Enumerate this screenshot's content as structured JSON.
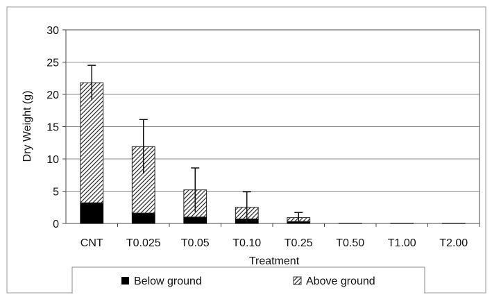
{
  "chart_data": {
    "type": "bar",
    "stacked": true,
    "xlabel": "Treatment",
    "ylabel": "Dry Weight (g)",
    "ylim": [
      0,
      30
    ],
    "yticks": [
      0,
      5,
      10,
      15,
      20,
      25,
      30
    ],
    "grid": true,
    "legend_position": "bottom",
    "categories": [
      "CNT",
      "T0.025",
      "T0.05",
      "T0.10",
      "T0.25",
      "T0.50",
      "T1.00",
      "T2.00"
    ],
    "series": [
      {
        "name": "Below ground",
        "pattern": "solid",
        "color": "#000000",
        "values": [
          3.2,
          1.6,
          1.0,
          0.7,
          0.3,
          0.0,
          0.0,
          0.0
        ]
      },
      {
        "name": "Above ground",
        "pattern": "diagonal-hatch",
        "color": "#555555",
        "values": [
          18.6,
          10.3,
          4.2,
          1.8,
          0.6,
          0.05,
          0.05,
          0.05
        ]
      }
    ],
    "error_bars": {
      "applies_to": "total",
      "values": [
        2.7,
        4.2,
        3.4,
        2.4,
        0.8,
        0.0,
        0.0,
        0.0
      ]
    }
  }
}
